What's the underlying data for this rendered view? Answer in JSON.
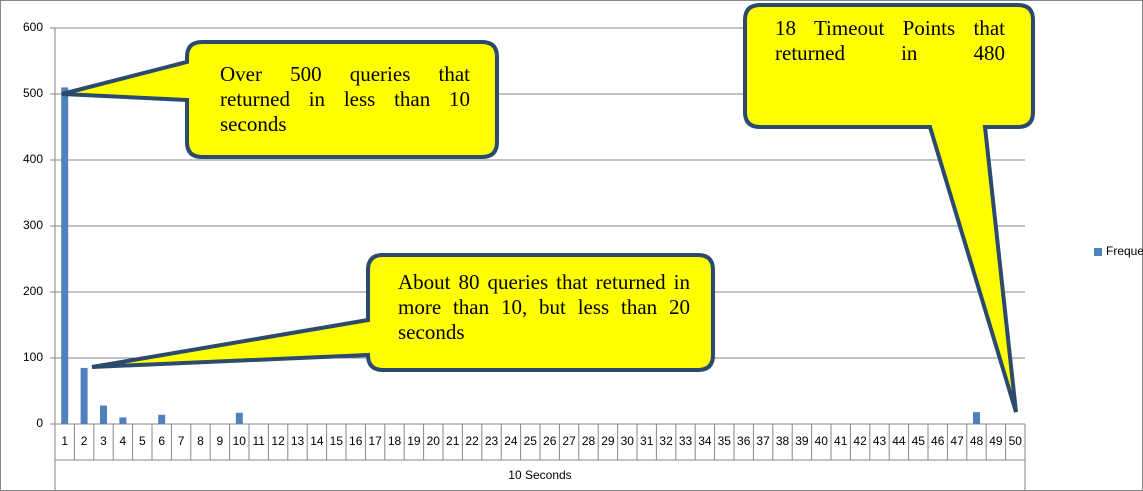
{
  "chart_data": {
    "type": "bar",
    "x_label": "10 Seconds",
    "categories": [
      "1",
      "2",
      "3",
      "4",
      "5",
      "6",
      "7",
      "8",
      "9",
      "10",
      "11",
      "12",
      "13",
      "14",
      "15",
      "16",
      "17",
      "18",
      "19",
      "20",
      "21",
      "22",
      "23",
      "24",
      "25",
      "26",
      "27",
      "28",
      "29",
      "30",
      "31",
      "32",
      "33",
      "34",
      "35",
      "36",
      "37",
      "38",
      "39",
      "40",
      "41",
      "42",
      "43",
      "44",
      "45",
      "46",
      "47",
      "48",
      "49",
      "50"
    ],
    "series": [
      {
        "name": "Frequency",
        "color": "#4f81bd",
        "values": [
          510,
          85,
          28,
          10,
          0,
          14,
          0,
          0,
          0,
          17,
          0,
          0,
          0,
          0,
          0,
          0,
          0,
          0,
          0,
          0,
          0,
          0,
          0,
          0,
          0,
          0,
          0,
          0,
          0,
          0,
          0,
          0,
          0,
          0,
          0,
          0,
          0,
          0,
          0,
          0,
          0,
          0,
          0,
          0,
          0,
          0,
          0,
          18,
          0,
          0
        ]
      }
    ],
    "ylim": [
      0,
      600
    ],
    "yticks": [
      0,
      100,
      200,
      300,
      400,
      500,
      600
    ],
    "grid": true,
    "legend": "right",
    "annotations": [
      "Over 500 queries that returned in less than 10 seconds",
      "About 80 queries that returned in more than 10, but less than 20 seconds",
      "18 Timeout Points that returned in 480"
    ]
  }
}
